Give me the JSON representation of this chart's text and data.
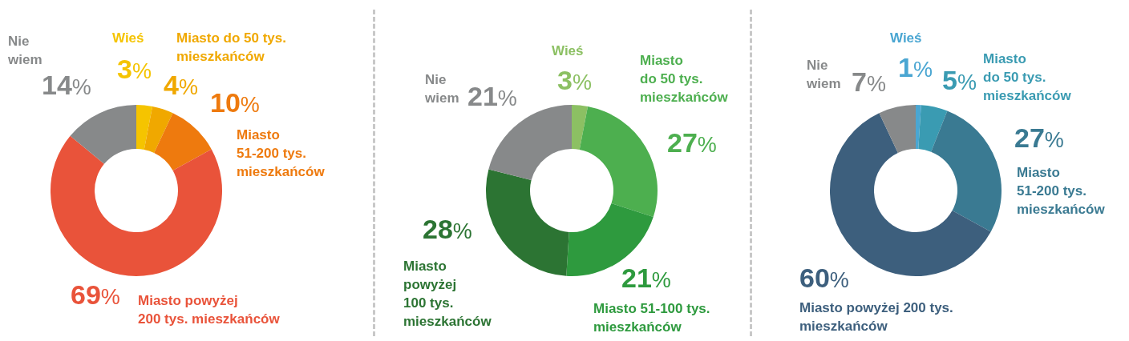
{
  "chart_data": [
    {
      "type": "donut",
      "categories": [
        "Wieś",
        "Miasto do 50 tys.\nmieszkańców",
        "Miasto\n51-200 tys.\nmieszkańców",
        "Miasto powyżej\n200 tys. mieszkańców",
        "Nie\nwiem"
      ],
      "values": [
        3,
        4,
        10,
        69,
        14
      ],
      "value_labels": [
        "3%",
        "4%",
        "10%",
        "69%",
        "14%"
      ],
      "colors": [
        "#f5c400",
        "#f0a800",
        "#ee7a0e",
        "#e9533a",
        "#87898a"
      ]
    },
    {
      "type": "donut",
      "categories": [
        "Wieś",
        "Miasto\ndo 50 tys.\nmieszkańców",
        "Miasto 51-100 tys.\nmieszkańców",
        "Miasto\npowyżej\n100 tys.\nmieszkańców",
        "Nie\nwiem"
      ],
      "values": [
        3,
        27,
        21,
        28,
        21
      ],
      "value_labels": [
        "3%",
        "27%",
        "21%",
        "28%",
        "21%"
      ],
      "colors": [
        "#8cc063",
        "#4daf4f",
        "#2e9a3e",
        "#2c7433",
        "#87898a"
      ]
    },
    {
      "type": "donut",
      "categories": [
        "Wieś",
        "Miasto\ndo 50 tys.\nmieszkańców",
        "Miasto\n51-200 tys.\nmieszkańców",
        "Miasto powyżej 200 tys.\nmieszkańców",
        "Nie\nwiem"
      ],
      "values": [
        1,
        5,
        27,
        60,
        7
      ],
      "value_labels": [
        "1%",
        "5%",
        "27%",
        "60%",
        "7%"
      ],
      "colors": [
        "#4aa6d2",
        "#3a9bb2",
        "#3a7a92",
        "#3d5f7d",
        "#87898a"
      ]
    }
  ]
}
